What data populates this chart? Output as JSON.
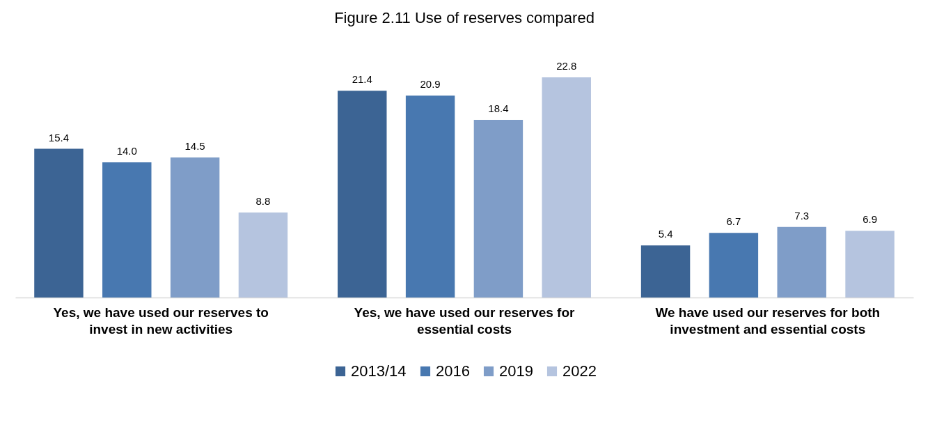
{
  "chart_data": {
    "type": "bar",
    "title": "Figure 2.11 Use of reserves compared",
    "categories": [
      "Yes, we have used our reserves to invest in new activities",
      "Yes, we have used our reserves for essential costs",
      "We have used our reserves for both investment and essential costs"
    ],
    "series": [
      {
        "name": "2013/14",
        "color": "#3c6494",
        "values": [
          15.4,
          21.4,
          5.4
        ],
        "value_labels": [
          "15.4",
          "21.4",
          "5.4"
        ]
      },
      {
        "name": "2016",
        "color": "#4878b0",
        "values": [
          14.0,
          20.9,
          6.7
        ],
        "value_labels": [
          "14.0",
          "20.9",
          "6.7"
        ]
      },
      {
        "name": "2019",
        "color": "#7f9dc8",
        "values": [
          14.5,
          18.4,
          7.3
        ],
        "value_labels": [
          "14.5",
          "18.4",
          "7.3"
        ]
      },
      {
        "name": "2022",
        "color": "#b5c4df",
        "values": [
          8.8,
          22.8,
          6.9
        ],
        "value_labels": [
          "8.8",
          "22.8",
          "6.9"
        ]
      }
    ],
    "data_labels": true,
    "legend": "bottom"
  }
}
